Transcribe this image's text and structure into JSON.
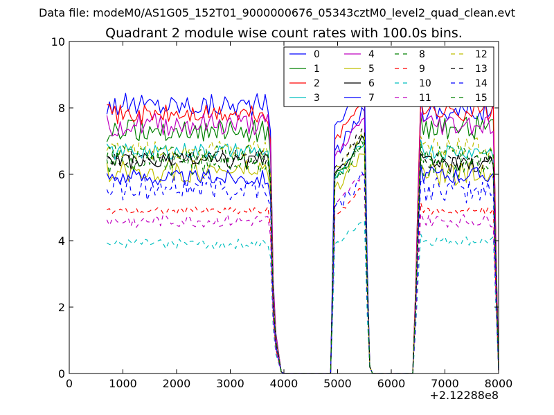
{
  "header": {
    "data_file": "Data file: modeM0/AS1G05_152T01_9000000676_05343cztM0_level2_quad_clean.evt",
    "title": "Quadrant 2 module wise count rates with 100.0s bins."
  },
  "chart_data": {
    "type": "line",
    "title": "Quadrant 2 module wise count rates with 100.0s bins.",
    "xlabel": "",
    "ylabel": "",
    "x_offset_label": "+2.12288e8",
    "xlim": [
      0,
      8000
    ],
    "ylim": [
      0,
      10
    ],
    "x_ticks": [
      0,
      1000,
      2000,
      3000,
      4000,
      5000,
      6000,
      7000,
      8000
    ],
    "x_tick_labels": [
      "0",
      "1000",
      "2000",
      "3000",
      "4000",
      "5000",
      "6000",
      "7000",
      "8000"
    ],
    "y_ticks": [
      0,
      2,
      4,
      6,
      8,
      10
    ],
    "y_tick_labels": [
      "0",
      "2",
      "4",
      "6",
      "8",
      "10"
    ],
    "legend_placement": "top-right",
    "grid": false,
    "series": [
      {
        "name": "0",
        "color": "#0000ff",
        "dash": "solid",
        "base": 8.1,
        "jitter": 0.35,
        "pass2_peak": 7.9,
        "pass3": 7.9
      },
      {
        "name": "1",
        "color": "#008000",
        "dash": "solid",
        "base": 7.3,
        "jitter": 0.35,
        "pass2_peak": 7.0,
        "pass3": 7.4
      },
      {
        "name": "2",
        "color": "#ff0000",
        "dash": "solid",
        "base": 7.8,
        "jitter": 0.3,
        "pass2_peak": 8.3,
        "pass3": 7.9
      },
      {
        "name": "3",
        "color": "#00bfbf",
        "dash": "solid",
        "base": 6.7,
        "jitter": 0.25,
        "pass2_peak": 6.9,
        "pass3": 6.7
      },
      {
        "name": "4",
        "color": "#bf00bf",
        "dash": "solid",
        "base": 7.5,
        "jitter": 0.35,
        "pass2_peak": 7.7,
        "pass3": 7.5
      },
      {
        "name": "5",
        "color": "#bfbf00",
        "dash": "solid",
        "base": 6.1,
        "jitter": 0.35,
        "pass2_peak": 6.6,
        "pass3": 6.0
      },
      {
        "name": "6",
        "color": "#000000",
        "dash": "solid",
        "base": 6.4,
        "jitter": 0.25,
        "pass2_peak": 7.1,
        "pass3": 6.3
      },
      {
        "name": "7",
        "color": "#0000ff",
        "dash": "solid",
        "base": 5.9,
        "jitter": 0.25,
        "pass2_peak": 8.8,
        "pass3": 6.0
      },
      {
        "name": "8",
        "color": "#008000",
        "dash": "dashed",
        "base": 6.3,
        "jitter": 0.35,
        "pass2_peak": 6.8,
        "pass3": 6.2
      },
      {
        "name": "9",
        "color": "#ff0000",
        "dash": "dashed",
        "base": 4.9,
        "jitter": 0.12,
        "pass2_peak": 5.6,
        "pass3": 4.9
      },
      {
        "name": "10",
        "color": "#00bfbf",
        "dash": "dashed",
        "base": 3.9,
        "jitter": 0.15,
        "pass2_peak": 4.6,
        "pass3": 4.0
      },
      {
        "name": "11",
        "color": "#bf00bf",
        "dash": "dashed",
        "base": 4.6,
        "jitter": 0.2,
        "pass2_peak": 6.0,
        "pass3": 4.6
      },
      {
        "name": "12",
        "color": "#bfbf00",
        "dash": "dashed",
        "base": 6.7,
        "jitter": 0.3,
        "pass2_peak": 7.2,
        "pass3": 6.8
      },
      {
        "name": "13",
        "color": "#000000",
        "dash": "dashed",
        "base": 6.5,
        "jitter": 0.25,
        "pass2_peak": 7.3,
        "pass3": 6.4
      },
      {
        "name": "14",
        "color": "#0000ff",
        "dash": "dashed",
        "base": 5.6,
        "jitter": 0.4,
        "pass2_peak": 5.9,
        "pass3": 5.5
      },
      {
        "name": "15",
        "color": "#008000",
        "dash": "dashed",
        "base": 6.6,
        "jitter": 0.3,
        "pass2_peak": 7.0,
        "pass3": 6.6
      }
    ],
    "segments": [
      {
        "start": 700,
        "end": 3750,
        "kind": "plateau"
      },
      {
        "start": 3800,
        "end": 4000,
        "kind": "drop"
      },
      {
        "start": 4000,
        "end": 4900,
        "kind": "zero"
      },
      {
        "start": 4900,
        "end": 5600,
        "kind": "pass2"
      },
      {
        "start": 5600,
        "end": 6400,
        "kind": "zero"
      },
      {
        "start": 6400,
        "end": 8000,
        "kind": "pass3"
      }
    ]
  }
}
